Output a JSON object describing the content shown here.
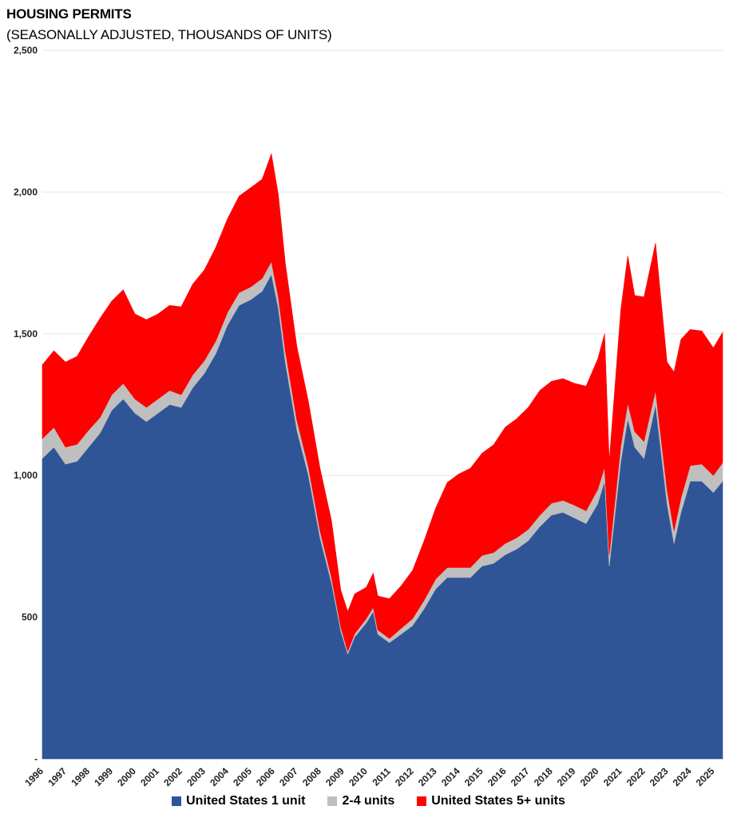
{
  "chart_data": {
    "type": "area",
    "stacked": true,
    "title": "HOUSING PERMITS",
    "subtitle": "(SEASONALLY ADJUSTED, THOUSANDS OF UNITS)",
    "ylim": [
      0,
      2500
    ],
    "yticks": [
      0,
      500,
      1000,
      1500,
      2000,
      2500
    ],
    "ytick_labels": [
      "-",
      "500",
      "1,000",
      "1,500",
      "2,000",
      "2,500"
    ],
    "xlim": [
      1996.0,
      2025.4
    ],
    "xticks": [
      "1996",
      "1997",
      "1998",
      "1999",
      "2000",
      "2001",
      "2002",
      "2003",
      "2004",
      "2005",
      "2006",
      "2007",
      "2008",
      "2009",
      "2010",
      "2011",
      "2012",
      "2013",
      "2014",
      "2015",
      "2016",
      "2017",
      "2018",
      "2019",
      "2020",
      "2021",
      "2022",
      "2023",
      "2024",
      "2025"
    ],
    "grid": true,
    "legend_position": "bottom",
    "x": [
      1996.0,
      1996.5,
      1997.0,
      1997.5,
      1998.0,
      1998.5,
      1999.0,
      1999.5,
      2000.0,
      2000.5,
      2001.0,
      2001.5,
      2002.0,
      2002.5,
      2003.0,
      2003.5,
      2004.0,
      2004.5,
      2005.0,
      2005.5,
      2005.9,
      2006.2,
      2006.5,
      2007.0,
      2007.5,
      2008.0,
      2008.5,
      2008.9,
      2009.2,
      2009.5,
      2010.0,
      2010.3,
      2010.5,
      2011.0,
      2011.5,
      2012.0,
      2012.5,
      2013.0,
      2013.5,
      2014.0,
      2014.5,
      2015.0,
      2015.5,
      2016.0,
      2016.5,
      2017.0,
      2017.5,
      2018.0,
      2018.5,
      2019.0,
      2019.5,
      2020.0,
      2020.3,
      2020.5,
      2021.0,
      2021.3,
      2021.6,
      2022.0,
      2022.5,
      2023.0,
      2023.3,
      2023.6,
      2024.0,
      2024.5,
      2025.0,
      2025.4
    ],
    "series": [
      {
        "name": "United States 1 unit",
        "color": "#2f5597",
        "values": [
          1060,
          1100,
          1040,
          1050,
          1100,
          1150,
          1230,
          1270,
          1220,
          1190,
          1220,
          1250,
          1240,
          1310,
          1360,
          1430,
          1530,
          1600,
          1620,
          1650,
          1710,
          1590,
          1400,
          1160,
          1000,
          780,
          620,
          450,
          370,
          430,
          480,
          520,
          440,
          410,
          440,
          470,
          530,
          600,
          640,
          640,
          640,
          680,
          690,
          720,
          740,
          770,
          820,
          860,
          870,
          850,
          830,
          900,
          980,
          680,
          1050,
          1200,
          1100,
          1060,
          1250,
          900,
          760,
          870,
          980,
          980,
          940,
          980
        ]
      },
      {
        "name": "2-4 units",
        "color": "#bfbfbf",
        "values": [
          70,
          70,
          60,
          60,
          60,
          55,
          55,
          55,
          50,
          50,
          50,
          50,
          45,
          45,
          45,
          45,
          45,
          45,
          45,
          45,
          45,
          40,
          40,
          35,
          30,
          25,
          20,
          15,
          10,
          12,
          15,
          15,
          15,
          15,
          20,
          25,
          30,
          35,
          35,
          35,
          35,
          38,
          38,
          40,
          40,
          40,
          40,
          42,
          42,
          45,
          45,
          50,
          50,
          40,
          55,
          55,
          55,
          60,
          50,
          50,
          45,
          50,
          55,
          60,
          60,
          65
        ]
      },
      {
        "name": "United States 5+ units",
        "color": "#ff0000",
        "values": [
          260,
          270,
          300,
          310,
          330,
          350,
          330,
          330,
          300,
          310,
          300,
          300,
          310,
          320,
          320,
          330,
          330,
          340,
          350,
          350,
          380,
          360,
          310,
          260,
          230,
          220,
          200,
          130,
          140,
          140,
          110,
          120,
          120,
          140,
          150,
          170,
          210,
          250,
          300,
          330,
          350,
          360,
          380,
          410,
          420,
          430,
          440,
          430,
          430,
          430,
          440,
          460,
          470,
          330,
          480,
          520,
          480,
          510,
          520,
          450,
          560,
          560,
          480,
          470,
          450,
          460
        ]
      }
    ]
  }
}
